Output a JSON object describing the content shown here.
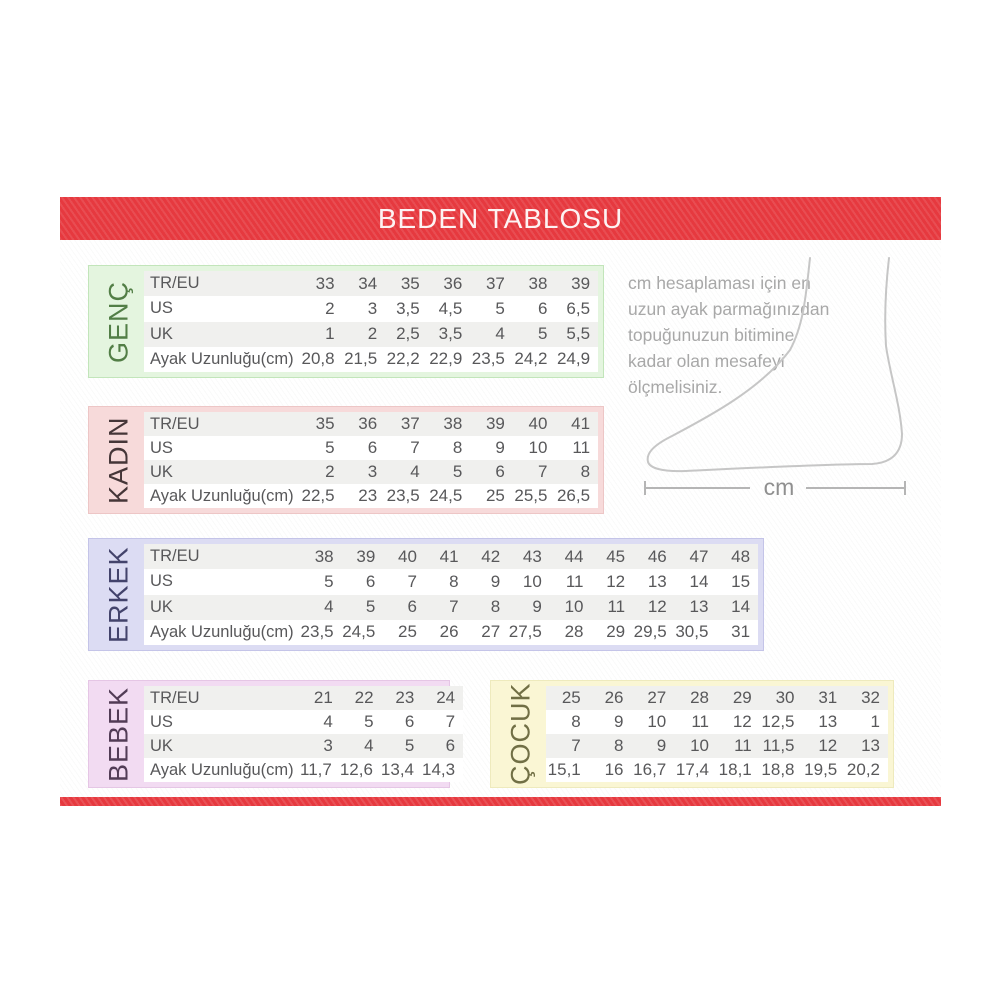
{
  "header": {
    "title": "BEDEN TABLOSU"
  },
  "instruction": {
    "lines": [
      "cm hesaplaması için en",
      "uzun ayak parmağınızdan",
      "topuğunuzun bitimine",
      "kadar olan mesafeyi",
      "ölçmelisiniz."
    ]
  },
  "measure_label": "cm",
  "colors": {
    "banner_red": "#e6393f",
    "row_stripe": "#f0f0ee",
    "cell_text": "#58585a",
    "instruction_text": "#a8a8a8",
    "foot_outline": "#c6c6c6"
  },
  "chart_data": [
    {
      "type": "table",
      "id": "genc",
      "title": "GENÇ",
      "has_row_labels": true,
      "accent": {
        "bg": "#e4f5df",
        "border": "#c2e5ba",
        "text": "#527e46"
      },
      "rows": [
        {
          "label": "TR/EU",
          "values": [
            "33",
            "34",
            "35",
            "36",
            "37",
            "38",
            "39"
          ]
        },
        {
          "label": "US",
          "values": [
            "2",
            "3",
            "3,5",
            "4,5",
            "5",
            "6",
            "6,5"
          ]
        },
        {
          "label": "UK",
          "values": [
            "1",
            "2",
            "2,5",
            "3,5",
            "4",
            "5",
            "5,5"
          ]
        },
        {
          "label": "Ayak Uzunluğu(cm)",
          "values": [
            "20,8",
            "21,5",
            "22,2",
            "22,9",
            "23,5",
            "24,2",
            "24,9"
          ]
        }
      ]
    },
    {
      "type": "table",
      "id": "kadin",
      "title": "KADIN",
      "has_row_labels": true,
      "accent": {
        "bg": "#f7dada",
        "border": "#edc6c6",
        "text": "#453638"
      },
      "rows": [
        {
          "label": "TR/EU",
          "values": [
            "35",
            "36",
            "37",
            "38",
            "39",
            "40",
            "41"
          ]
        },
        {
          "label": "US",
          "values": [
            "5",
            "6",
            "7",
            "8",
            "9",
            "10",
            "11"
          ]
        },
        {
          "label": "UK",
          "values": [
            "2",
            "3",
            "4",
            "5",
            "6",
            "7",
            "8"
          ]
        },
        {
          "label": "Ayak Uzunluğu(cm)",
          "values": [
            "22,5",
            "23",
            "23,5",
            "24,5",
            "25",
            "25,5",
            "26,5"
          ]
        }
      ]
    },
    {
      "type": "table",
      "id": "erkek",
      "title": "ERKEK",
      "has_row_labels": true,
      "accent": {
        "bg": "#dcdcf3",
        "border": "#c4c4e8",
        "text": "#43436b"
      },
      "rows": [
        {
          "label": "TR/EU",
          "values": [
            "38",
            "39",
            "40",
            "41",
            "42",
            "43",
            "44",
            "45",
            "46",
            "47",
            "48"
          ]
        },
        {
          "label": "US",
          "values": [
            "5",
            "6",
            "7",
            "8",
            "9",
            "10",
            "11",
            "12",
            "13",
            "14",
            "15"
          ]
        },
        {
          "label": "UK",
          "values": [
            "4",
            "5",
            "6",
            "7",
            "8",
            "9",
            "10",
            "11",
            "12",
            "13",
            "14"
          ]
        },
        {
          "label": "Ayak Uzunluğu(cm)",
          "values": [
            "23,5",
            "24,5",
            "25",
            "26",
            "27",
            "27,5",
            "28",
            "29",
            "29,5",
            "30,5",
            "31"
          ]
        }
      ]
    },
    {
      "type": "table",
      "id": "bebek",
      "title": "BEBEK",
      "has_row_labels": true,
      "accent": {
        "bg": "#f2dbf2",
        "border": "#e5c6e5",
        "text": "#523c56"
      },
      "rows": [
        {
          "label": "TR/EU",
          "values": [
            "21",
            "22",
            "23",
            "24"
          ]
        },
        {
          "label": "US",
          "values": [
            "4",
            "5",
            "6",
            "7"
          ]
        },
        {
          "label": "UK",
          "values": [
            "3",
            "4",
            "5",
            "6"
          ]
        },
        {
          "label": "Ayak Uzunluğu(cm)",
          "values": [
            "11,7",
            "12,6",
            "13,4",
            "14,3"
          ]
        }
      ]
    },
    {
      "type": "table",
      "id": "cocuk",
      "title": "ÇOCUK",
      "has_row_labels": false,
      "accent": {
        "bg": "#faf6d4",
        "border": "#eeeabd",
        "text": "#716f45"
      },
      "rows": [
        {
          "label": "TR/EU",
          "values": [
            "25",
            "26",
            "27",
            "28",
            "29",
            "30",
            "31",
            "32"
          ]
        },
        {
          "label": "US",
          "values": [
            "8",
            "9",
            "10",
            "11",
            "12",
            "12,5",
            "13",
            "1"
          ]
        },
        {
          "label": "UK",
          "values": [
            "7",
            "8",
            "9",
            "10",
            "11",
            "11,5",
            "12",
            "13"
          ]
        },
        {
          "label": "Ayak Uzunluğu(cm)",
          "values": [
            "15,1",
            "16",
            "16,7",
            "17,4",
            "18,1",
            "18,8",
            "19,5",
            "20,2"
          ]
        }
      ]
    }
  ]
}
